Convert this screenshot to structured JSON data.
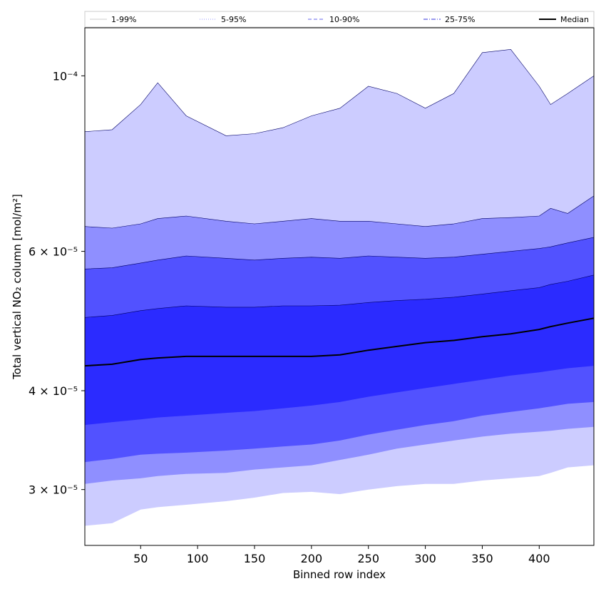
{
  "chart_data": {
    "type": "area",
    "title": "",
    "xlabel": "Binned row index",
    "ylabel": "Total vertical NO₂ column [mol/m²]",
    "yscale": "log",
    "xlim": [
      1,
      448
    ],
    "ylim": [
      2.55e-05,
      0.000115
    ],
    "x_ticks": [
      50,
      100,
      150,
      200,
      250,
      300,
      350,
      400
    ],
    "y_ticks": [
      {
        "value": 0.0001,
        "label": "10⁻⁴"
      },
      {
        "value": 6e-05,
        "label": "6 × 10⁻⁵"
      },
      {
        "value": 4e-05,
        "label": "4 × 10⁻⁵"
      },
      {
        "value": 3e-05,
        "label": "3 × 10⁻⁵"
      }
    ],
    "legend_position": "top",
    "legend": [
      {
        "label": "1-99%",
        "style": "solid",
        "color": "#ccccff"
      },
      {
        "label": "5-95%",
        "style": "dotted",
        "color": "#9999ff"
      },
      {
        "label": "10-90%",
        "style": "dashed",
        "color": "#6666ee"
      },
      {
        "label": "25-75%",
        "style": "dashdot",
        "color": "#3333dd"
      },
      {
        "label": "Median",
        "style": "solid",
        "color": "#000000"
      }
    ],
    "x": [
      1,
      25,
      50,
      65,
      90,
      125,
      150,
      175,
      200,
      225,
      250,
      275,
      300,
      325,
      350,
      375,
      400,
      410,
      425,
      448
    ],
    "bands": [
      {
        "name": "1-99%",
        "color": "#ccccff",
        "lower": [
          2.7e-05,
          2.72e-05,
          2.83e-05,
          2.85e-05,
          2.87e-05,
          2.9e-05,
          2.93e-05,
          2.97e-05,
          2.98e-05,
          2.96e-05,
          3e-05,
          3.03e-05,
          3.05e-05,
          3.05e-05,
          3.08e-05,
          3.1e-05,
          3.12e-05,
          3.15e-05,
          3.2e-05,
          3.22e-05
        ],
        "upper": [
          8.5e-05,
          8.55e-05,
          9.2e-05,
          9.8e-05,
          8.9e-05,
          8.4e-05,
          8.45e-05,
          8.6e-05,
          8.9e-05,
          9.1e-05,
          9.7e-05,
          9.5e-05,
          9.1e-05,
          9.5e-05,
          0.000107,
          0.000108,
          9.7e-05,
          9.2e-05,
          9.5e-05,
          0.0001
        ]
      },
      {
        "name": "5-95%",
        "color": "#8f8fff",
        "lower": [
          3.05e-05,
          3.08e-05,
          3.1e-05,
          3.12e-05,
          3.14e-05,
          3.15e-05,
          3.18e-05,
          3.2e-05,
          3.22e-05,
          3.27e-05,
          3.32e-05,
          3.38e-05,
          3.42e-05,
          3.46e-05,
          3.5e-05,
          3.53e-05,
          3.55e-05,
          3.56e-05,
          3.58e-05,
          3.6e-05
        ],
        "upper": [
          6.45e-05,
          6.42e-05,
          6.5e-05,
          6.6e-05,
          6.65e-05,
          6.55e-05,
          6.5e-05,
          6.55e-05,
          6.6e-05,
          6.55e-05,
          6.55e-05,
          6.5e-05,
          6.45e-05,
          6.5e-05,
          6.6e-05,
          6.62e-05,
          6.65e-05,
          6.8e-05,
          6.7e-05,
          7.05e-05
        ]
      },
      {
        "name": "10-90%",
        "color": "#5252ff",
        "lower": [
          3.25e-05,
          3.28e-05,
          3.32e-05,
          3.33e-05,
          3.34e-05,
          3.36e-05,
          3.38e-05,
          3.4e-05,
          3.42e-05,
          3.46e-05,
          3.52e-05,
          3.57e-05,
          3.62e-05,
          3.66e-05,
          3.72e-05,
          3.76e-05,
          3.8e-05,
          3.82e-05,
          3.85e-05,
          3.87e-05
        ],
        "upper": [
          5.7e-05,
          5.72e-05,
          5.8e-05,
          5.85e-05,
          5.92e-05,
          5.88e-05,
          5.85e-05,
          5.88e-05,
          5.9e-05,
          5.88e-05,
          5.92e-05,
          5.9e-05,
          5.88e-05,
          5.9e-05,
          5.95e-05,
          6e-05,
          6.05e-05,
          6.08e-05,
          6.15e-05,
          6.25e-05
        ]
      },
      {
        "name": "25-75%",
        "color": "#2b2bff",
        "lower": [
          3.62e-05,
          3.65e-05,
          3.68e-05,
          3.7e-05,
          3.72e-05,
          3.75e-05,
          3.77e-05,
          3.8e-05,
          3.83e-05,
          3.87e-05,
          3.93e-05,
          3.98e-05,
          4.03e-05,
          4.08e-05,
          4.13e-05,
          4.18e-05,
          4.22e-05,
          4.24e-05,
          4.27e-05,
          4.3e-05
        ],
        "upper": [
          4.95e-05,
          4.98e-05,
          5.05e-05,
          5.08e-05,
          5.12e-05,
          5.1e-05,
          5.1e-05,
          5.12e-05,
          5.12e-05,
          5.13e-05,
          5.17e-05,
          5.2e-05,
          5.22e-05,
          5.25e-05,
          5.3e-05,
          5.35e-05,
          5.4e-05,
          5.45e-05,
          5.5e-05,
          5.6e-05
        ]
      }
    ],
    "series": [
      {
        "name": "Median",
        "color": "#000000",
        "values": [
          4.3e-05,
          4.32e-05,
          4.38e-05,
          4.4e-05,
          4.42e-05,
          4.42e-05,
          4.42e-05,
          4.42e-05,
          4.42e-05,
          4.44e-05,
          4.5e-05,
          4.55e-05,
          4.6e-05,
          4.63e-05,
          4.68e-05,
          4.72e-05,
          4.78e-05,
          4.82e-05,
          4.87e-05,
          4.94e-05
        ]
      }
    ]
  }
}
